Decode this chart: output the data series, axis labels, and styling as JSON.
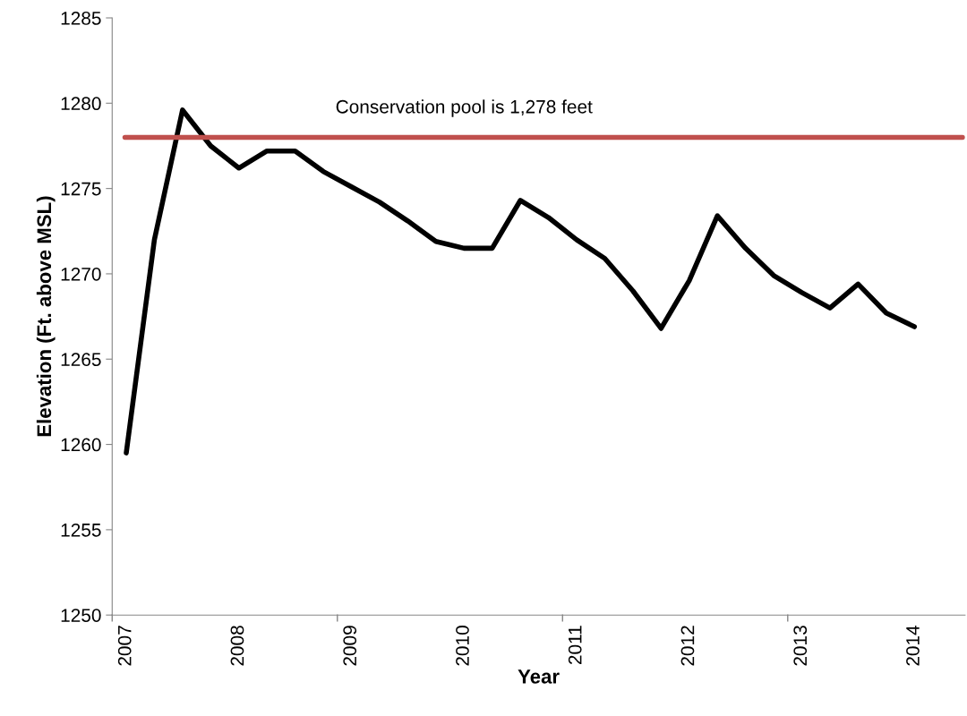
{
  "chart_data": {
    "type": "line",
    "xlabel": "Year",
    "ylabel": "Elevation (Ft. above MSL)",
    "categories": [
      "2007",
      null,
      null,
      null,
      "2008",
      null,
      null,
      null,
      "2009",
      null,
      null,
      null,
      "2010",
      null,
      null,
      null,
      "2011",
      null,
      null,
      null,
      "2012",
      null,
      null,
      null,
      "2013",
      null,
      null,
      null,
      "2014",
      null
    ],
    "series": [
      {
        "color": "#000000",
        "values": [
          1259.5,
          1272.0,
          1279.6,
          1277.5,
          1276.2,
          1277.2,
          1277.2,
          1276.0,
          1275.1,
          1274.2,
          1273.1,
          1271.9,
          1271.5,
          1271.5,
          1274.3,
          1273.3,
          1272.0,
          1270.9,
          1269.0,
          1266.8,
          1269.6,
          1273.4,
          1271.5,
          1269.9,
          1268.9,
          1268.0,
          1269.4,
          1267.7,
          1266.9,
          null
        ]
      }
    ],
    "ylim": [
      1250,
      1285
    ],
    "yticks": [
      1250,
      1255,
      1260,
      1265,
      1270,
      1275,
      1280,
      1285
    ],
    "ref_lines": [
      {
        "axis": "y",
        "value": 1278,
        "label": "Conservation pool is 1,278 feet",
        "color": "#c0504d"
      }
    ],
    "grid": false,
    "legend": false,
    "marker": "none",
    "line_style": "solid"
  }
}
